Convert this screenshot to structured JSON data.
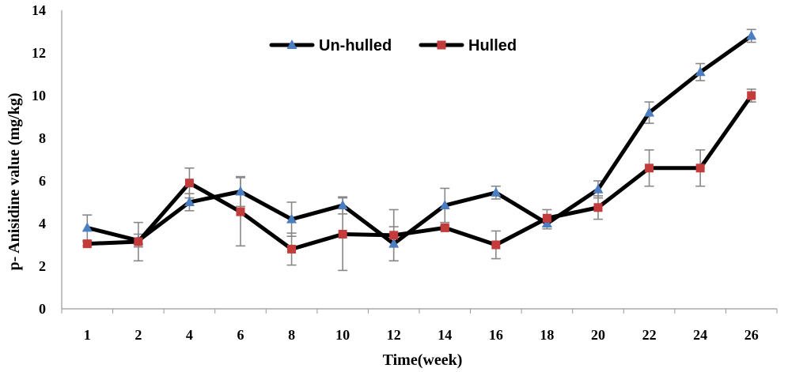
{
  "chart_data": {
    "type": "line",
    "title": "",
    "xlabel": "Time(week)",
    "ylabel": "p- Anisidine value (mg/kg)",
    "categories": [
      "1",
      "2",
      "4",
      "6",
      "8",
      "10",
      "12",
      "14",
      "16",
      "18",
      "20",
      "22",
      "24",
      "26"
    ],
    "ylim": [
      0,
      14
    ],
    "yticks": [
      "0",
      "2",
      "4",
      "6",
      "8",
      "10",
      "12",
      "14"
    ],
    "grid": false,
    "legend_position": "top-center",
    "series": [
      {
        "name": "Un-hulled",
        "values": [
          3.8,
          3.2,
          5.0,
          5.5,
          4.2,
          4.85,
          3.05,
          4.85,
          5.45,
          4.0,
          5.6,
          9.2,
          11.1,
          12.8
        ],
        "errors": [
          0.6,
          0.3,
          0.4,
          0.7,
          0.8,
          0.4,
          0.8,
          0.8,
          0.3,
          0.25,
          0.4,
          0.5,
          0.4,
          0.3
        ],
        "color": "#4a7ec1",
        "marker": "triangle"
      },
      {
        "name": "Hulled",
        "values": [
          3.05,
          3.15,
          5.9,
          4.55,
          2.8,
          3.5,
          3.45,
          3.8,
          3.0,
          4.25,
          4.75,
          6.6,
          6.6,
          10.0
        ],
        "errors": [
          0.1,
          0.9,
          0.7,
          1.6,
          0.75,
          1.7,
          1.2,
          0.1,
          0.65,
          0.4,
          0.55,
          0.85,
          0.85,
          0.3
        ],
        "color": "#c33b3b",
        "marker": "square"
      }
    ]
  },
  "style": {
    "line_color": "#000000",
    "axis_color": "#999999",
    "errorbar_color": "#888888"
  }
}
